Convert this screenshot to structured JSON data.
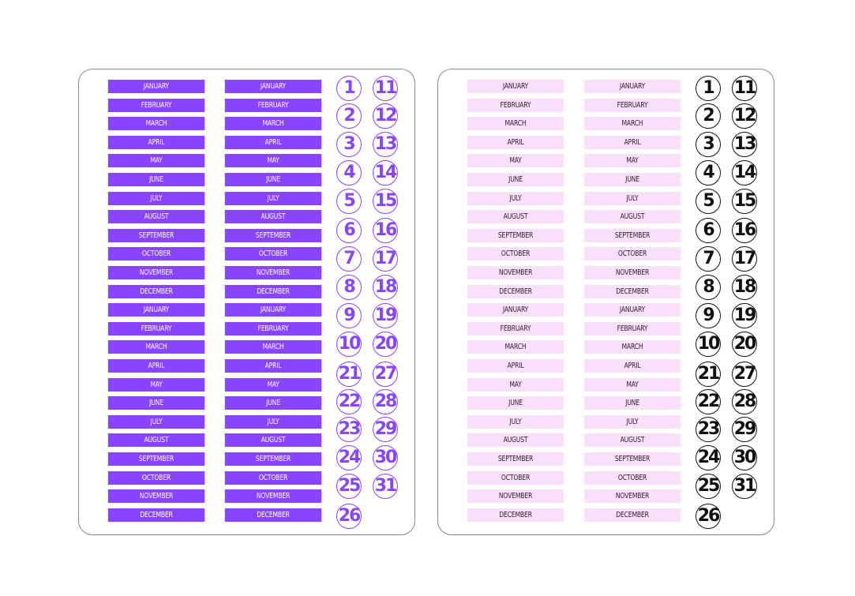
{
  "colors": {
    "left_label_bg": "#8844ff",
    "left_label_text": "#ffffff",
    "left_circle": "#8844ff",
    "right_label_bg": "#fae1fb",
    "right_label_text": "#2c1a2e",
    "right_circle": "#111111"
  },
  "months": [
    "JANUARY",
    "FEBRUARY",
    "MARCH",
    "APRIL",
    "MAY",
    "JUNE",
    "JULY",
    "AUGUST",
    "SEPTEMBER",
    "OCTOBER",
    "NOVEMBER",
    "DECEMBER",
    "JANUARY",
    "FEBRUARY",
    "MARCH",
    "APRIL",
    "MAY",
    "JUNE",
    "JULY",
    "AUGUST",
    "SEPTEMBER",
    "OCTOBER",
    "NOVEMBER",
    "DECEMBER"
  ],
  "numbers_col1": [
    "1",
    "2",
    "3",
    "4",
    "5",
    "6",
    "7",
    "8",
    "9",
    "10",
    "21",
    "22",
    "23",
    "24",
    "25",
    "26"
  ],
  "numbers_col2": [
    "11",
    "12",
    "13",
    "14",
    "15",
    "16",
    "17",
    "18",
    "19",
    "20",
    "27",
    "28",
    "29",
    "30",
    "31"
  ]
}
